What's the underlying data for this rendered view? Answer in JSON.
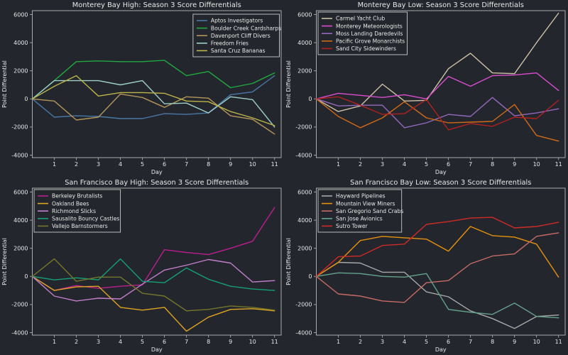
{
  "figure": {
    "background": "#23262c",
    "text_color": "#e8e8e8",
    "axis_color": "#aaaaaa",
    "legend_border_color": "#cccccc"
  },
  "chart_data": [
    {
      "type": "line",
      "title": "Monterey Bay High: Season 3 Score Differentials",
      "xlabel": "Day",
      "ylabel": "Point Differential",
      "x": [
        0,
        1,
        2,
        3,
        4,
        5,
        6,
        7,
        8,
        9,
        10,
        11
      ],
      "xticks": [
        1,
        2,
        3,
        4,
        5,
        6,
        7,
        8,
        9,
        10,
        11
      ],
      "yticks": [
        -4000,
        -2000,
        0,
        2000,
        4000,
        6000
      ],
      "xlim": [
        0,
        11.3
      ],
      "ylim": [
        -4177,
        6278
      ],
      "grid": false,
      "legend_position": "upper right",
      "series": [
        {
          "name": "Aptos Investigators",
          "color": "#4a78a6",
          "values": [
            0,
            -1300,
            -1200,
            -1250,
            -1400,
            -1400,
            -1050,
            -1100,
            -1000,
            300,
            500,
            1650
          ]
        },
        {
          "name": "Boulder Creek Cardsharps",
          "color": "#21a93f",
          "values": [
            0,
            1300,
            2650,
            2700,
            2650,
            2650,
            2750,
            1650,
            1950,
            800,
            1100,
            1850
          ]
        },
        {
          "name": "Davenport Cliff Divers",
          "color": "#b3955b",
          "values": [
            0,
            -150,
            -1500,
            -1300,
            350,
            100,
            -600,
            150,
            50,
            -1200,
            -1450,
            -2500
          ]
        },
        {
          "name": "Freedom Fries",
          "color": "#9ecfca",
          "values": [
            0,
            1300,
            1300,
            1300,
            1000,
            1300,
            -350,
            -300,
            -1000,
            150,
            -50,
            -2000
          ]
        },
        {
          "name": "Santa Cruz Bananas",
          "color": "#bcb54a",
          "values": [
            0,
            900,
            1650,
            200,
            450,
            450,
            400,
            -150,
            -200,
            -900,
            -1350,
            -1900
          ]
        }
      ]
    },
    {
      "type": "line",
      "title": "Monterey Bay Low: Season 3 Score Differentials",
      "xlabel": "Day",
      "ylabel": "Point Differential",
      "x": [
        0,
        1,
        2,
        3,
        4,
        5,
        6,
        7,
        8,
        9,
        10,
        11
      ],
      "xticks": [
        1,
        2,
        3,
        4,
        5,
        6,
        7,
        8,
        9,
        10,
        11
      ],
      "yticks": [
        -4000,
        -2000,
        0,
        2000,
        4000,
        6000
      ],
      "xlim": [
        0,
        11.3
      ],
      "ylim": [
        -4177,
        6278
      ],
      "grid": false,
      "legend_position": "upper left",
      "series": [
        {
          "name": "Carmel Yacht Club",
          "color": "#cdc1a5",
          "values": [
            0,
            -900,
            -500,
            1050,
            -150,
            -100,
            2150,
            3250,
            1850,
            1800,
            4000,
            6100
          ]
        },
        {
          "name": "Monterey Meteorologists",
          "color": "#d94ecf",
          "values": [
            0,
            400,
            250,
            100,
            300,
            0,
            1600,
            900,
            1650,
            1700,
            1850,
            600
          ]
        },
        {
          "name": "Moss Landing Daredevils",
          "color": "#9468bd",
          "values": [
            0,
            -500,
            -450,
            -450,
            -2050,
            -1700,
            -1100,
            -1250,
            100,
            -1200,
            -1000,
            -700
          ]
        },
        {
          "name": "Pacific Grove Monarchists",
          "color": "#cf6a18",
          "values": [
            0,
            -1250,
            -2050,
            -1350,
            -200,
            -1350,
            -1700,
            -1650,
            -1600,
            -400,
            -2600,
            -3000
          ]
        },
        {
          "name": "Sand City Sidewinders",
          "color": "#b02121",
          "values": [
            0,
            150,
            -450,
            -1100,
            -1050,
            -50,
            -2200,
            -1750,
            -1950,
            -1300,
            -1400,
            -100
          ]
        }
      ]
    },
    {
      "type": "line",
      "title": "San Francisco Bay High: Season 3 Score Differentials",
      "xlabel": "Day",
      "ylabel": "Point Differential",
      "x": [
        0,
        1,
        2,
        3,
        4,
        5,
        6,
        7,
        8,
        9,
        10,
        11
      ],
      "xticks": [
        1,
        2,
        3,
        4,
        5,
        6,
        7,
        8,
        9,
        10,
        11
      ],
      "yticks": [
        -4000,
        -2000,
        0,
        2000,
        4000,
        6000
      ],
      "xlim": [
        0,
        11.3
      ],
      "ylim": [
        -4177,
        6278
      ],
      "grid": false,
      "legend_position": "upper left",
      "series": [
        {
          "name": "Berkeley Brutalists",
          "color": "#bb1f8f",
          "values": [
            0,
            -1000,
            -650,
            -850,
            -700,
            -600,
            1900,
            1700,
            1550,
            2000,
            2500,
            4900
          ]
        },
        {
          "name": "Oakland Bees",
          "color": "#dea421",
          "values": [
            0,
            -1000,
            -750,
            -700,
            -2200,
            -2400,
            -2200,
            -3900,
            -2900,
            -2350,
            -2300,
            -2450
          ]
        },
        {
          "name": "Richmond Slicks",
          "color": "#c07fc9",
          "values": [
            0,
            -1400,
            -1750,
            -1550,
            -1600,
            -550,
            450,
            800,
            1200,
            950,
            -400,
            -300
          ]
        },
        {
          "name": "Sausalito Bouncy Castles",
          "color": "#16a075",
          "values": [
            0,
            -250,
            -100,
            -250,
            1250,
            -350,
            -450,
            600,
            -200,
            -700,
            -900,
            -1000
          ]
        },
        {
          "name": "Vallejo Barnstormers",
          "color": "#74772b",
          "values": [
            0,
            1250,
            -350,
            -50,
            -50,
            -1200,
            -1400,
            -2450,
            -2350,
            -2100,
            -2200,
            -2400
          ]
        }
      ]
    },
    {
      "type": "line",
      "title": "San Francisco Bay Low: Season 3 Score Differentials",
      "xlabel": "Day",
      "ylabel": "Point Differential",
      "x": [
        0,
        1,
        2,
        3,
        4,
        5,
        6,
        7,
        8,
        9,
        10,
        11
      ],
      "xticks": [
        1,
        2,
        3,
        4,
        5,
        6,
        7,
        8,
        9,
        10,
        11
      ],
      "yticks": [
        -4000,
        -2000,
        0,
        2000,
        4000,
        6000
      ],
      "xlim": [
        0,
        11.3
      ],
      "ylim": [
        -4177,
        6278
      ],
      "grid": false,
      "legend_position": "upper left",
      "series": [
        {
          "name": "Hayward Pipelines",
          "color": "#a8a8a8",
          "values": [
            0,
            1000,
            950,
            300,
            300,
            -1100,
            -1450,
            -2450,
            -3000,
            -3700,
            -2850,
            -2750
          ]
        },
        {
          "name": "Mountain View Miners",
          "color": "#e5920f",
          "values": [
            0,
            1000,
            2550,
            2850,
            2750,
            2650,
            1800,
            3550,
            2900,
            2800,
            2300,
            -50
          ]
        },
        {
          "name": "San Gregorio Sand Crabs",
          "color": "#c66b66",
          "values": [
            0,
            -1250,
            -1400,
            -1750,
            -1850,
            -450,
            -300,
            900,
            1450,
            1600,
            2850,
            3100
          ]
        },
        {
          "name": "San Jose Avionics",
          "color": "#64a28c",
          "values": [
            0,
            250,
            200,
            0,
            -50,
            200,
            -2350,
            -2550,
            -2700,
            -1900,
            -2850,
            -2950
          ]
        },
        {
          "name": "Sutro Tower",
          "color": "#cf2b26",
          "values": [
            0,
            1400,
            1450,
            2200,
            2300,
            3700,
            3900,
            4150,
            4200,
            3450,
            3550,
            3850
          ]
        }
      ]
    }
  ]
}
